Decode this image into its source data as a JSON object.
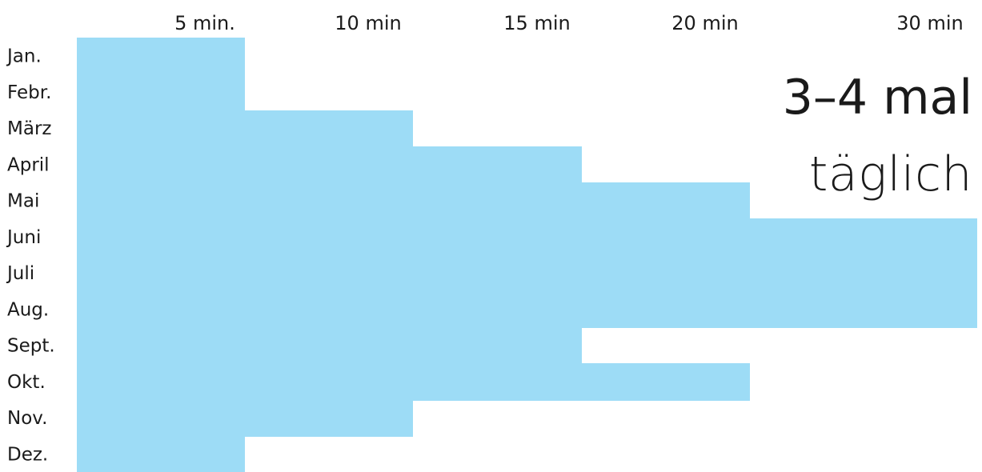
{
  "chart_data": {
    "type": "bar",
    "orientation": "horizontal",
    "categories": [
      "Jan.",
      "Febr.",
      "März",
      "April",
      "Mai",
      "Juni",
      "Juli",
      "Aug.",
      "Sept.",
      "Okt.",
      "Nov.",
      "Dez."
    ],
    "values": [
      5,
      5,
      10,
      15,
      20,
      30,
      30,
      30,
      15,
      20,
      10,
      5
    ],
    "x_ticks": [
      "5 min.",
      "10 min",
      "15 min",
      "20 min",
      "30 min"
    ],
    "x_axis_position": "top",
    "grid": false,
    "bar_color": "#9ddcf6",
    "annotation": {
      "line1": "3–4 mal",
      "line2": "täglich"
    }
  }
}
